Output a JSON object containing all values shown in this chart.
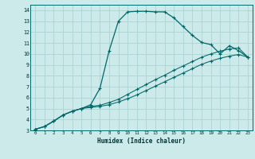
{
  "xlabel": "Humidex (Indice chaleur)",
  "xlim": [
    -0.5,
    23.5
  ],
  "ylim": [
    3,
    14.5
  ],
  "xticks": [
    0,
    1,
    2,
    3,
    4,
    5,
    6,
    7,
    8,
    9,
    10,
    11,
    12,
    13,
    14,
    15,
    16,
    17,
    18,
    19,
    20,
    21,
    22,
    23
  ],
  "yticks": [
    3,
    4,
    5,
    6,
    7,
    8,
    9,
    10,
    11,
    12,
    13,
    14
  ],
  "bg_color": "#cceaea",
  "grid_color": "#aad4d4",
  "line_color": "#006868",
  "line1_x": [
    0,
    1,
    2,
    3,
    4,
    5,
    6,
    7,
    8,
    9,
    10,
    11,
    12,
    13,
    14,
    15,
    16,
    17,
    18,
    19,
    20,
    21,
    22,
    23
  ],
  "line1_y": [
    3.1,
    3.35,
    3.85,
    4.4,
    4.75,
    5.0,
    5.35,
    6.85,
    10.3,
    13.0,
    13.85,
    13.9,
    13.9,
    13.85,
    13.85,
    13.3,
    12.5,
    11.7,
    11.05,
    10.85,
    10.0,
    10.75,
    10.3,
    9.7
  ],
  "line2_x": [
    0,
    1,
    2,
    3,
    4,
    5,
    6,
    7,
    8,
    9,
    10,
    11,
    12,
    13,
    14,
    15,
    16,
    17,
    18,
    19,
    20,
    21,
    22,
    23
  ],
  "line2_y": [
    3.1,
    3.35,
    3.85,
    4.4,
    4.75,
    5.0,
    5.2,
    5.3,
    5.55,
    5.85,
    6.3,
    6.75,
    7.2,
    7.65,
    8.05,
    8.5,
    8.9,
    9.3,
    9.7,
    10.0,
    10.25,
    10.45,
    10.55,
    9.7
  ],
  "line3_x": [
    0,
    1,
    2,
    3,
    4,
    5,
    6,
    7,
    8,
    9,
    10,
    11,
    12,
    13,
    14,
    15,
    16,
    17,
    18,
    19,
    20,
    21,
    22,
    23
  ],
  "line3_y": [
    3.1,
    3.35,
    3.85,
    4.4,
    4.75,
    5.0,
    5.1,
    5.2,
    5.35,
    5.6,
    5.9,
    6.25,
    6.65,
    7.05,
    7.45,
    7.85,
    8.25,
    8.65,
    9.05,
    9.35,
    9.6,
    9.8,
    9.95,
    9.7
  ]
}
